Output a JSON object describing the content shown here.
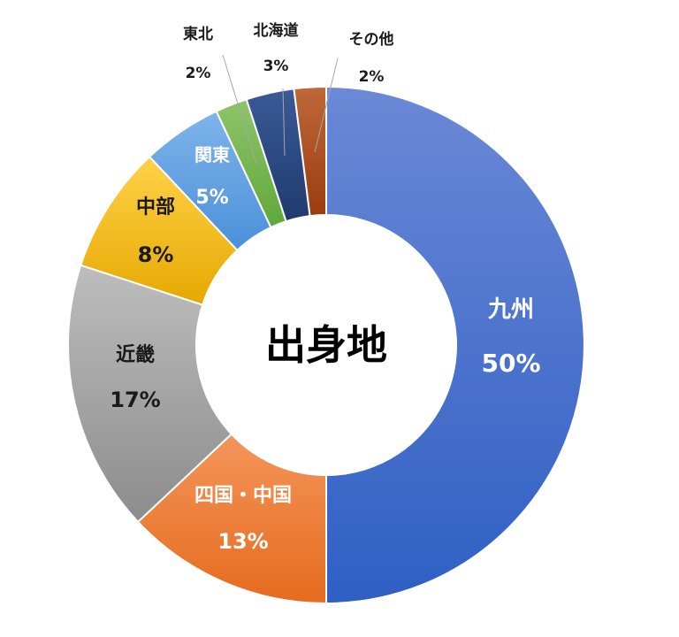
{
  "chart_data": {
    "type": "pie",
    "title": "出身地",
    "donut": true,
    "slices": [
      {
        "name": "九州",
        "pct_label": "50%",
        "value": 50,
        "color_top": "#6a89d6",
        "color_bottom": "#2f5fc4",
        "label_color": "#ffffff"
      },
      {
        "name": "四国・中国",
        "pct_label": "13%",
        "value": 13,
        "color_top": "#f4955a",
        "color_bottom": "#e56b1e",
        "label_color": "#ffffff"
      },
      {
        "name": "近畿",
        "pct_label": "17%",
        "value": 17,
        "color_top": "#bdbdbd",
        "color_bottom": "#8c8c8c",
        "label_color": "#1a1a1a"
      },
      {
        "name": "中部",
        "pct_label": "8%",
        "value": 8,
        "color_top": "#ffd24a",
        "color_bottom": "#e6a800",
        "label_color": "#1a1a1a"
      },
      {
        "name": "関東",
        "pct_label": "5%",
        "value": 5,
        "color_top": "#7fb4ea",
        "color_bottom": "#4a90d9",
        "label_color": "#ffffff"
      },
      {
        "name": "東北",
        "pct_label": "2%",
        "value": 2,
        "color_top": "#8fc46a",
        "color_bottom": "#5fa83a",
        "label_color": "#1a1a1a"
      },
      {
        "name": "北海道",
        "pct_label": "3%",
        "value": 3,
        "color_top": "#3b5a96",
        "color_bottom": "#1f3a6e",
        "label_color": "#1a1a1a"
      },
      {
        "name": "その他",
        "pct_label": "2%",
        "value": 2,
        "color_top": "#c0683a",
        "color_bottom": "#9a3c10",
        "label_color": "#1a1a1a"
      }
    ]
  }
}
